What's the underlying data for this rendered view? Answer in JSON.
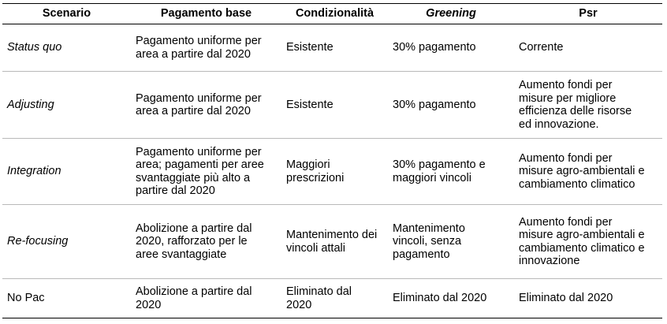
{
  "headers": {
    "scenario": "Scenario",
    "base": "Pagamento base",
    "cond": "Condizionalità",
    "greening": "Greening",
    "psr": "Psr"
  },
  "rows": [
    {
      "scenario": "Status quo",
      "base": "Pagamento uniforme per\narea a partire dal 2020",
      "cond": "Esistente",
      "greening": "30% pagamento",
      "psr": "Corrente"
    },
    {
      "scenario": "Adjusting",
      "base": "Pagamento uniforme per\narea a partire dal 2020",
      "cond": "Esistente",
      "greening": "30% pagamento",
      "psr": "Aumento fondi per\nmisure per migliore\nefficienza delle risorse\ned innovazione."
    },
    {
      "scenario": "Integration",
      "base": "Pagamento uniforme per\narea; pagamenti per aree\nsvantaggiate più alto a\npartire dal 2020",
      "cond": "Maggiori\nprescrizioni",
      "greening": "30% pagamento e\nmaggiori vincoli",
      "psr": "Aumento fondi per\nmisure agro-ambientali e\ncambiamento climatico"
    },
    {
      "scenario": "Re-focusing",
      "base": "Abolizione a partire dal\n2020, rafforzato per le\naree svantaggiate",
      "cond": "Mantenimento dei\nvincoli attali",
      "greening": "Mantenimento\nvincoli, senza\npagamento",
      "psr": "Aumento fondi per\nmisure agro-ambientali e\ncambiamento climatico e\ninnovazione"
    },
    {
      "scenario": "No Pac",
      "base": "Abolizione a partire dal\n2020",
      "cond": "Eliminato dal\n2020",
      "greening": "Eliminato dal 2020",
      "psr": "Eliminato dal 2020"
    }
  ]
}
